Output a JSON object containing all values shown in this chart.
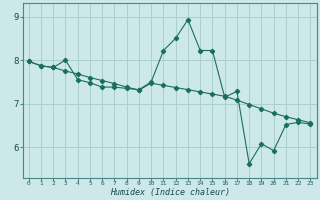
{
  "xlabel": "Humidex (Indice chaleur)",
  "xlim": [
    -0.5,
    23.5
  ],
  "ylim": [
    5.3,
    9.3
  ],
  "xticks": [
    0,
    1,
    2,
    3,
    4,
    5,
    6,
    7,
    8,
    9,
    10,
    11,
    12,
    13,
    14,
    15,
    16,
    17,
    18,
    19,
    20,
    21,
    22,
    23
  ],
  "yticks": [
    6,
    7,
    8,
    9
  ],
  "background_color": "#cce8e8",
  "grid_color": "#aacece",
  "line_color": "#1a6e5e",
  "line1_x": [
    0,
    1,
    2,
    3,
    4,
    5,
    6,
    7,
    8,
    9,
    10,
    11,
    12,
    13,
    14,
    15,
    16,
    17,
    18,
    19,
    20,
    21,
    22,
    23
  ],
  "line1_y": [
    7.97,
    7.87,
    7.83,
    8.0,
    7.55,
    7.48,
    7.38,
    7.38,
    7.35,
    7.32,
    7.5,
    8.22,
    8.5,
    8.93,
    8.22,
    8.22,
    7.15,
    7.28,
    5.62,
    6.08,
    5.92,
    6.52,
    6.57,
    6.53
  ],
  "line2_x": [
    0,
    1,
    2,
    3,
    4,
    5,
    6,
    7,
    8,
    9,
    10,
    11,
    12,
    13,
    14,
    15,
    16,
    17,
    18,
    19,
    20,
    21,
    22,
    23
  ],
  "line2_y": [
    7.97,
    7.87,
    7.83,
    7.75,
    7.68,
    7.6,
    7.53,
    7.46,
    7.38,
    7.31,
    7.47,
    7.42,
    7.37,
    7.32,
    7.27,
    7.22,
    7.17,
    7.08,
    6.98,
    6.88,
    6.78,
    6.7,
    6.63,
    6.56
  ]
}
